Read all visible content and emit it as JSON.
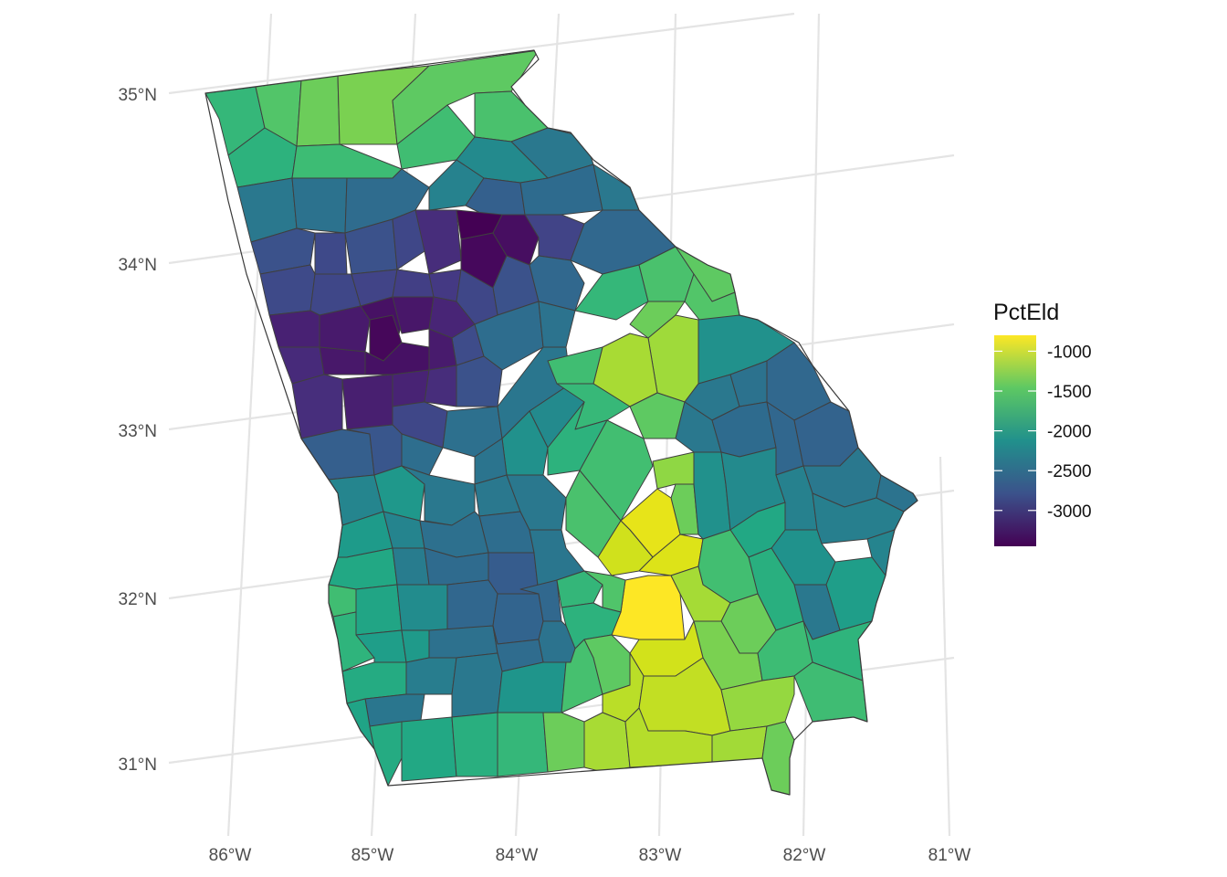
{
  "map": {
    "region": "Georgia counties",
    "longitude_ticks": [
      "86°W",
      "85°W",
      "84°W",
      "83°W",
      "82°W",
      "81°W"
    ],
    "latitude_ticks": [
      "35°N",
      "34°N",
      "33°N",
      "32°N",
      "31°N"
    ],
    "fill_variable": "PctEld",
    "colors": {
      "background": "#ffffff",
      "grid": "#e4e4e4",
      "county_border": "#3f3f3f",
      "palette": "viridis"
    }
  },
  "legend": {
    "title": "PctEld",
    "labels": [
      "-1000",
      "-1500",
      "-2000",
      "-2500",
      "-3000"
    ],
    "values": [
      -1000,
      -1500,
      -2000,
      -2500,
      -3000
    ],
    "range": [
      -3450,
      -800
    ],
    "colors": [
      "#440154",
      "#3b528b",
      "#21908c",
      "#5dc863",
      "#fde725"
    ]
  }
}
